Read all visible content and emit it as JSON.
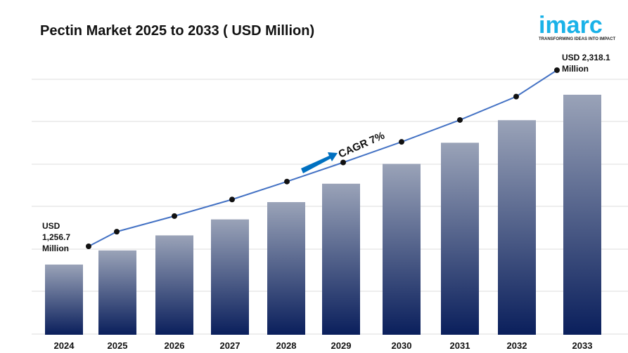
{
  "title": "Pectin Market 2025 to 2033 ( USD Million)",
  "logo": {
    "text": "imarc",
    "tagline": "TRANSFORMING IDEAS INTO IMPACT",
    "color": "#1ab2e8"
  },
  "chart_data": {
    "type": "bar",
    "title": "Pectin Market 2025 to 2033 ( USD Million)",
    "categories": [
      "2024",
      "2025",
      "2026",
      "2027",
      "2028",
      "2029",
      "2030",
      "2031",
      "2032",
      "2033"
    ],
    "values": [
      1256.7,
      1345,
      1439,
      1539,
      1647,
      1762,
      1886,
      2018,
      2159,
      2318.1
    ],
    "overlay_line": true,
    "annotations": {
      "start": [
        "USD",
        "1,256.7",
        "Million"
      ],
      "end": [
        "USD 2,318.1",
        "Million"
      ],
      "cagr": "CAGR 7%"
    },
    "grid": true,
    "bar_color_top": "#9aa3b8",
    "bar_color_bottom": "#0a1f5c",
    "line_color": "#4472c4",
    "arrow_color": "#0070c0"
  }
}
